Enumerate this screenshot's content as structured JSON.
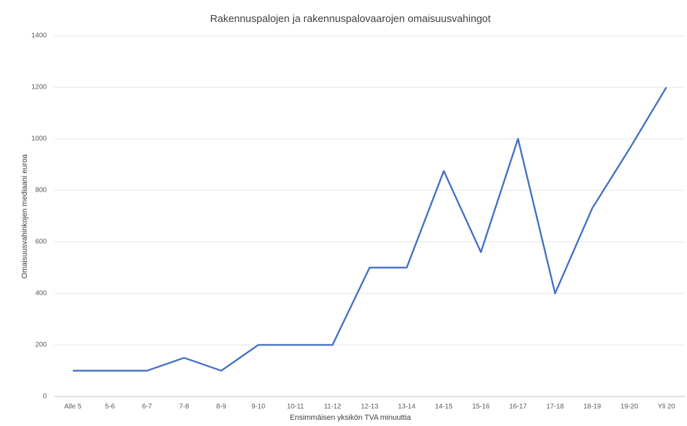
{
  "chart_data": {
    "type": "line",
    "title": "Rakennuspalojen ja rakennuspalovaarojen omaisuusvahingot",
    "x_label": "Ensimmäisen yksikön TVA minuuttia",
    "y_label": "Omaisuusvahinkojen mediaani euroa",
    "categories": [
      "Alle 5",
      "5-6",
      "6-7",
      "7-8",
      "8-9",
      "9-10",
      "10-11",
      "11-12",
      "12-13",
      "13-14",
      "14-15",
      "15-16",
      "16-17",
      "17-18",
      "18-19",
      "19-20",
      "Yli 20"
    ],
    "series": [
      {
        "name": "Omaisuusvahingot",
        "color": "#4472c4",
        "values": [
          100,
          100,
          100,
          150,
          100,
          200,
          200,
          200,
          500,
          500,
          875,
          560,
          1000,
          400,
          730,
          960,
          1200
        ]
      }
    ],
    "ylim": [
      0,
      1400
    ],
    "yticks": [
      0,
      200,
      400,
      600,
      800,
      1000,
      1200,
      1400
    ],
    "grid": true
  }
}
